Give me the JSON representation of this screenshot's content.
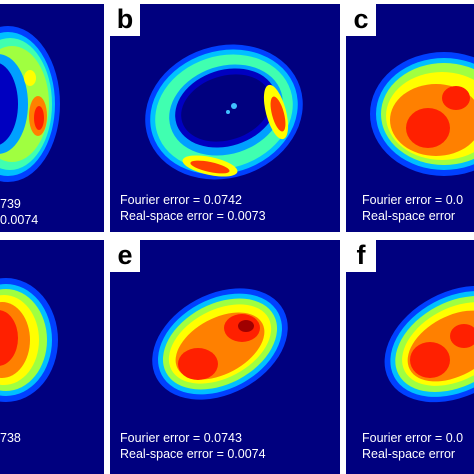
{
  "colors": {
    "background": "#00007f",
    "colormap": [
      "#00007f",
      "#0000ff",
      "#00a0ff",
      "#00ffd0",
      "#a0ff40",
      "#ffff00",
      "#ff8000",
      "#ff2000",
      "#a00000"
    ]
  },
  "panels": [
    {
      "id": "a",
      "letter": "",
      "fourier": "739",
      "real": "0.0074",
      "shape": "ring-right"
    },
    {
      "id": "b",
      "letter": "b",
      "fourier": "Fourier error = 0.0742",
      "real": "Real-space error = 0.0073",
      "shape": "ring"
    },
    {
      "id": "c",
      "letter": "c",
      "fourier": "Fourier error = 0.0",
      "real": "Real-space error",
      "shape": "blob-left"
    },
    {
      "id": "d",
      "letter": "",
      "fourier": "738",
      "real": "",
      "shape": "blob-left-edge"
    },
    {
      "id": "e",
      "letter": "e",
      "fourier": "Fourier error = 0.0743",
      "real": "Real-space error = 0.0074",
      "shape": "blob"
    },
    {
      "id": "f",
      "letter": "f",
      "fourier": "Fourier error = 0.0",
      "real": "Real-space error",
      "shape": "blob-left"
    }
  ]
}
